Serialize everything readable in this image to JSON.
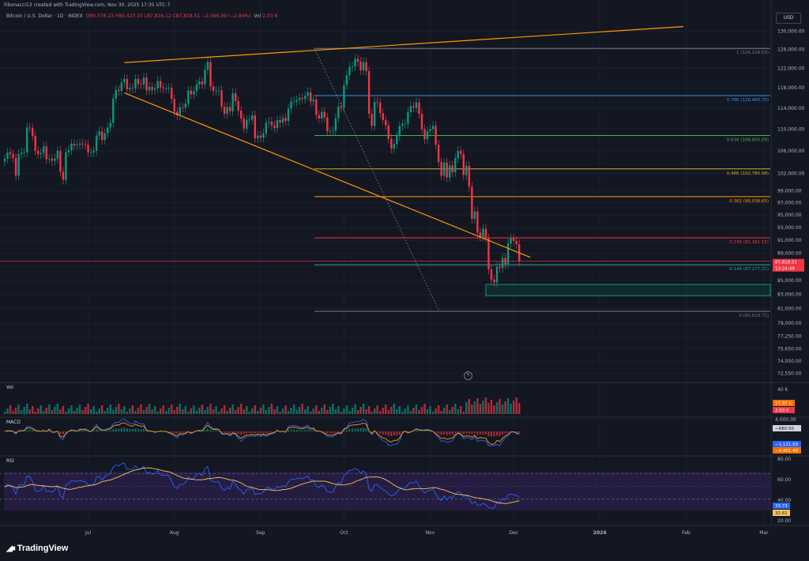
{
  "header": {
    "published_note": "Fibonacci13 created with TradingView.com, Nov 30, 2025 17:35 UTC-7",
    "symbol": "Bitcoin / U.S. Dollar · 1D · INDEX",
    "ohlc": "O90,378.23 H90,423.10 L87,816.12 C87,818.51 −2,566.09 (−2.84%)",
    "vol_label": "Vol",
    "vol_value": "2.03 K",
    "currency_button": "USD"
  },
  "brand": {
    "name": "TradingView",
    "icon": "tradingview-logo"
  },
  "panes": {
    "volume": "Vol",
    "macd": "MACD",
    "rsi": "RSI"
  },
  "colors": {
    "background": "#131722",
    "up": "#089981",
    "down": "#f23645",
    "trendline": "#ff9800",
    "rsi_line": "#2962ff",
    "rsi_ma": "#f7c65a",
    "rsi_band": "#2a1f4a"
  },
  "chart_data": {
    "type": "candlestick",
    "price_axis": {
      "ticks": [
        "130,000.00",
        "126,000.00",
        "122,000.00",
        "118,000.00",
        "114,000.00",
        "110,000.00",
        "106,000.00",
        "102,000.00",
        "99,000.00",
        "97,000.00",
        "95,000.00",
        "93,000.00",
        "91,000.00",
        "89,000.00",
        "87,000.00",
        "85,000.00",
        "83,000.00",
        "81,000.00",
        "79,000.00",
        "77,250.00",
        "75,650.00",
        "74,050.00",
        "72,550.00"
      ],
      "scale": "log",
      "range": [
        72000,
        132000
      ]
    },
    "time_axis": {
      "ticks": [
        {
          "label": "Jul",
          "date": "2025-07-01"
        },
        {
          "label": "Aug",
          "date": "2025-08-01"
        },
        {
          "label": "Sep",
          "date": "2025-09-01"
        },
        {
          "label": "Oct",
          "date": "2025-10-01"
        },
        {
          "label": "Nov",
          "date": "2025-11-01"
        },
        {
          "label": "Dec",
          "date": "2025-12-01"
        },
        {
          "label": "2026",
          "date": "2026-01-01"
        },
        {
          "label": "Feb",
          "date": "2026-02-01"
        },
        {
          "label": "Mar",
          "date": "2026-03-01"
        }
      ]
    },
    "fib_levels": [
      {
        "ratio": "1",
        "label": "1 (126,219.03)",
        "price": 126219.03,
        "color": "#787b86"
      },
      {
        "ratio": "0.786",
        "label": "0.786 (116,460.70)",
        "price": 116460.7,
        "color": "#2196f3"
      },
      {
        "ratio": "0.618",
        "label": "0.618 (108,800.09)",
        "price": 108800.09,
        "color": "#4caf50"
      },
      {
        "ratio": "0.486",
        "label": "0.486 (102,780.98)",
        "price": 102780.98,
        "color": "#c9b22b"
      },
      {
        "ratio": "0.382",
        "label": "0.382 (98,038.65)",
        "price": 98038.65,
        "color": "#ff9800"
      },
      {
        "ratio": "0.236",
        "label": "0.236 (91,381.15)",
        "price": 91381.15,
        "color": "#f23645"
      },
      {
        "ratio": "0.146",
        "label": "0.146 (87,277.21)",
        "price": 87277.21,
        "color": "#26a69a"
      },
      {
        "ratio": "0",
        "label": "0 (80,619.71)",
        "price": 80619.71,
        "color": "#787b86"
      }
    ],
    "price_labels": [
      {
        "text": "87,818.51",
        "color": "#f23645"
      },
      {
        "text": "13:24:49",
        "color": "#f23645"
      }
    ],
    "demand_zone": {
      "from_price": 84400,
      "to_price": 82800,
      "from_date": "2025-11-21",
      "color": "#089981"
    },
    "trendlines": [
      {
        "name": "upper",
        "from": {
          "date": "2025-07-14",
          "price": 123200
        },
        "to": {
          "date": "2026-01-31",
          "price": 131000
        }
      },
      {
        "name": "lower",
        "from": {
          "date": "2025-07-14",
          "price": 117000
        },
        "to": {
          "date": "2025-12-07",
          "price": 88400
        }
      }
    ],
    "ohlc_series": {
      "start_date": "2025-06-01",
      "closes": [
        104600,
        105700,
        105400,
        104700,
        101600,
        105400,
        105700,
        105700,
        110300,
        110200,
        108700,
        106000,
        105400,
        105600,
        106800,
        104500,
        104600,
        104200,
        104600,
        106000,
        102300,
        100900,
        105700,
        106100,
        107300,
        107000,
        107100,
        107300,
        107200,
        107100,
        105700,
        105700,
        106000,
        108800,
        109600,
        108000,
        109200,
        110300,
        111200,
        115900,
        117600,
        117400,
        119100,
        119800,
        117700,
        118000,
        117900,
        119800,
        118800,
        118700,
        120100,
        117500,
        118200,
        117600,
        117900,
        119400,
        118100,
        117900,
        117900,
        118000,
        115800,
        113300,
        112600,
        114200,
        114100,
        114900,
        117500,
        116700,
        117300,
        118700,
        119300,
        118700,
        121700,
        123300,
        118300,
        117400,
        117400,
        117500,
        114300,
        112900,
        114200,
        113400,
        116900,
        115400,
        113500,
        112000,
        110100,
        111700,
        111800,
        112600,
        108300,
        108800,
        108400,
        109200,
        111200,
        111400,
        110700,
        110200,
        111700,
        111200,
        112100,
        111500,
        113900,
        115300,
        115300,
        115600,
        116000,
        115800,
        116400,
        117100,
        115300,
        115700,
        112700,
        112000,
        113300,
        112200,
        109600,
        109600,
        109700,
        112100,
        114300,
        114100,
        118600,
        120600,
        122300,
        122400,
        124000,
        123400,
        121600,
        123300,
        121400,
        112900,
        110600,
        115200,
        115100,
        113000,
        111700,
        110700,
        108200,
        106400,
        107200,
        108700,
        110600,
        111000,
        111000,
        113200,
        114400,
        114100,
        115100,
        112900,
        110000,
        108100,
        109600,
        110000,
        110600,
        107100,
        104000,
        101600,
        103900,
        101300,
        103400,
        102200,
        104700,
        106000,
        105400,
        101700,
        103300,
        99700,
        94400,
        95600,
        92200,
        91500,
        92800,
        91300,
        86600,
        85100,
        84700,
        87000,
        86800,
        88300,
        87400,
        90500,
        91300,
        90900,
        90400,
        87800
      ]
    },
    "volume": {
      "labels": [
        "40 K",
        "17.97 K",
        "2.03 K"
      ]
    },
    "macd": {
      "labels": [
        "4,000.00",
        "−680.50",
        "−1,121.50",
        "−4,401.48"
      ]
    },
    "rsi": {
      "ticks": [
        "80.00",
        "60.00",
        "40.00",
        "20.00"
      ],
      "labels": [
        "33.73",
        "32.61"
      ],
      "values": [
        49,
        53,
        51,
        47,
        38,
        52,
        53,
        52,
        66,
        65,
        57,
        44,
        42,
        44,
        51,
        42,
        43,
        41,
        44,
        52,
        35,
        32,
        53,
        54,
        59,
        58,
        58,
        59,
        58,
        57,
        52,
        52,
        53,
        64,
        66,
        60,
        65,
        68,
        70,
        80,
        83,
        82,
        85,
        86,
        76,
        77,
        76,
        82,
        77,
        77,
        81,
        70,
        72,
        69,
        70,
        75,
        68,
        67,
        67,
        67,
        58,
        49,
        47,
        53,
        53,
        56,
        65,
        61,
        63,
        68,
        70,
        67,
        77,
        81,
        60,
        57,
        57,
        57,
        47,
        44,
        48,
        46,
        58,
        53,
        47,
        43,
        38,
        45,
        45,
        48,
        37,
        39,
        38,
        41,
        48,
        48,
        46,
        45,
        50,
        48,
        51,
        49,
        57,
        61,
        61,
        62,
        63,
        62,
        64,
        66,
        59,
        60,
        50,
        48,
        52,
        49,
        41,
        41,
        41,
        50,
        56,
        55,
        67,
        71,
        75,
        75,
        78,
        76,
        70,
        74,
        68,
        46,
        42,
        53,
        53,
        48,
        45,
        43,
        38,
        35,
        37,
        41,
        46,
        47,
        47,
        53,
        56,
        55,
        58,
        51,
        44,
        40,
        43,
        44,
        46,
        38,
        32,
        28,
        35,
        29,
        34,
        32,
        38,
        42,
        40,
        33,
        36,
        30,
        23,
        26,
        21,
        20,
        24,
        21,
        17,
        16,
        16,
        26,
        25,
        31,
        29,
        36,
        38,
        37,
        36,
        33
      ]
    }
  }
}
